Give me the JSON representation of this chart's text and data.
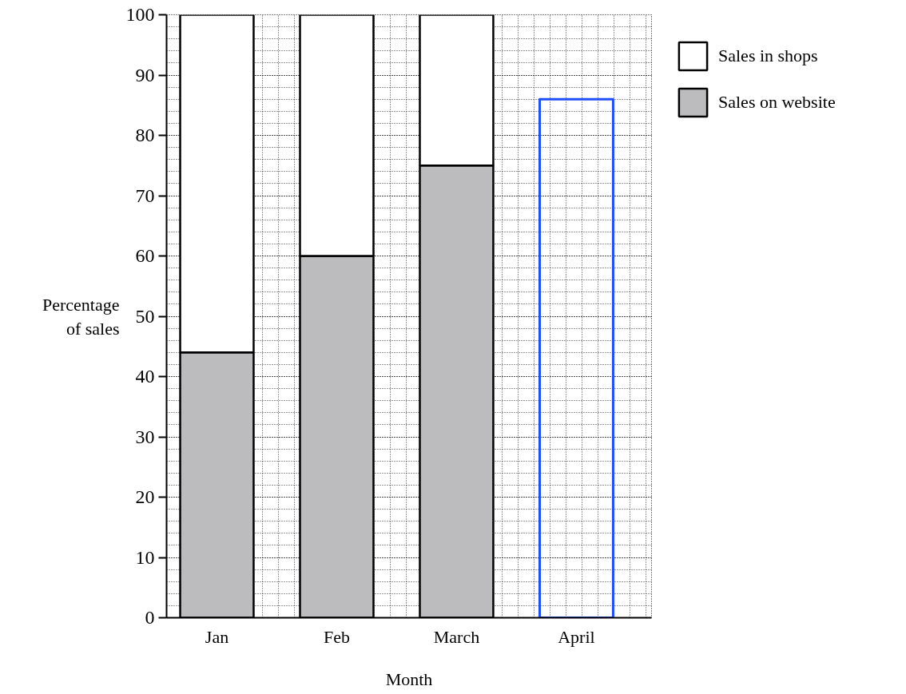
{
  "chart_data": {
    "type": "bar",
    "stacked": true,
    "xlabel": "Month",
    "ylabel": "Percentage\nof sales",
    "categories": [
      "Jan",
      "Feb",
      "March",
      "April"
    ],
    "series": [
      {
        "name": "Sales on website",
        "color": "#bcbcbe",
        "values": [
          44,
          60,
          75,
          null
        ]
      },
      {
        "name": "Sales in shops",
        "color": "#ffffff",
        "values": [
          56,
          40,
          25,
          null
        ]
      },
      {
        "color": "#1f4fff",
        "values": [
          null,
          null,
          null,
          86
        ]
      }
    ],
    "ylim": [
      0,
      100
    ],
    "yticks": [
      0,
      10,
      20,
      30,
      40,
      50,
      60,
      70,
      80,
      90,
      100
    ],
    "grid": true,
    "legend": "top right"
  }
}
